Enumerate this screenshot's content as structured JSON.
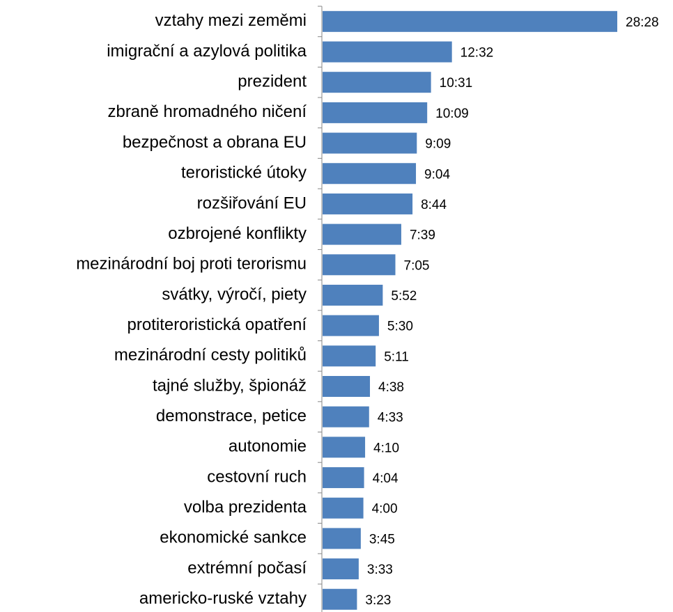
{
  "chart_data": {
    "type": "bar",
    "orientation": "horizontal",
    "color": "#4f81bd",
    "categories": [
      "vztahy mezi zeměmi",
      "imigrační a azylová politika",
      "prezident",
      "zbraně hromadného ničení",
      "bezpečnost a obrana EU",
      "teroristické útoky",
      "rozšiřování EU",
      "ozbrojené konflikty",
      "mezinárodní boj proti terorismu",
      "svátky, výročí, piety",
      "protiteroristická opatření",
      "mezinárodní cesty politiků",
      "tajné služby, špionáž",
      "demonstrace, petice",
      "autonomie",
      "cestovní ruch",
      "volba prezidenta",
      "ekonomické sankce",
      "extrémní počasí",
      "americko-ruské vztahy"
    ],
    "values": [
      1708,
      752,
      631,
      609,
      549,
      544,
      524,
      459,
      425,
      352,
      330,
      311,
      278,
      273,
      250,
      244,
      240,
      225,
      213,
      203
    ],
    "value_labels": [
      "28:28",
      "12:32",
      "10:31",
      "10:09",
      "9:09",
      "9:04",
      "8:44",
      "7:39",
      "7:05",
      "5:52",
      "5:30",
      "5:11",
      "4:38",
      "4:33",
      "4:10",
      "4:04",
      "4:00",
      "3:45",
      "3:33",
      "3:23"
    ]
  }
}
